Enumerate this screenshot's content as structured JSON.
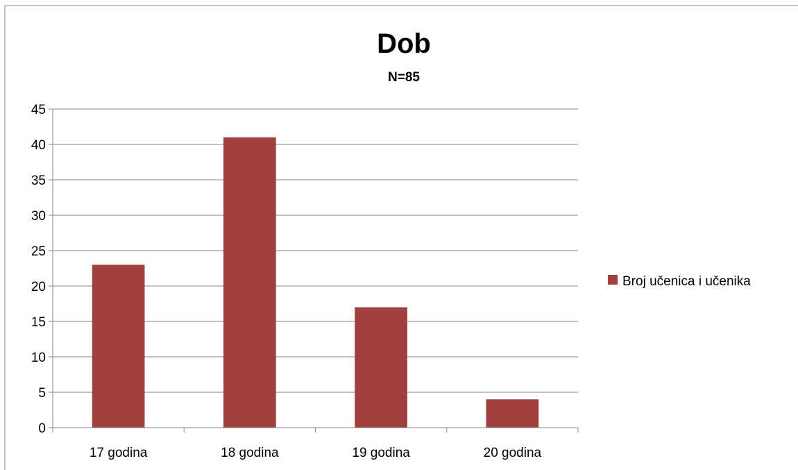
{
  "chart_data": {
    "type": "bar",
    "title": "Dob",
    "subtitle": "N=85",
    "categories": [
      "17 godina",
      "18 godina",
      "19 godina",
      "20 godina"
    ],
    "series": [
      {
        "name": "Broj učenica i učenika",
        "values": [
          23,
          41,
          17,
          4
        ],
        "color": "#A0413F"
      }
    ],
    "ylim": [
      0,
      45
    ],
    "yticks": [
      0,
      5,
      10,
      15,
      20,
      25,
      30,
      35,
      40,
      45
    ],
    "grid": true,
    "legend_position": "right",
    "gridline_color": "#868686"
  }
}
